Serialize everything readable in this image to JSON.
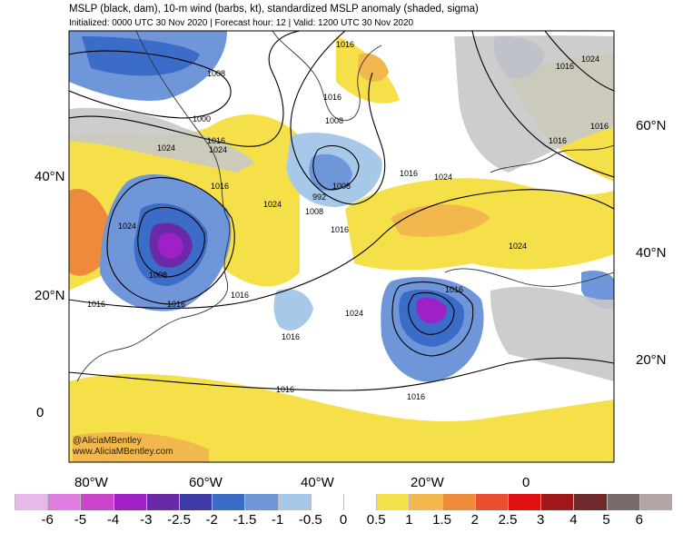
{
  "header": {
    "title": "MSLP (black, dam), 10-m wind (barbs, kt), standardized MSLP anomaly (shaded, sigma)",
    "subtitle": "Initialized: 0000 UTC 30 Nov 2020 | Forecast hour: 12 | Valid: 1200 UTC 30 Nov 2020"
  },
  "axes": {
    "left_lat": [
      "40°N",
      "20°N",
      "0"
    ],
    "right_lat": [
      "60°N",
      "40°N",
      "20°N"
    ],
    "bottom_lon": [
      "80°W",
      "60°W",
      "40°W",
      "20°W",
      "0"
    ]
  },
  "isobar_labels": [
    "1016",
    "1008",
    "1016",
    "1008",
    "1000",
    "1016",
    "1024",
    "1024",
    "1016",
    "1008",
    "992",
    "1008",
    "1016",
    "1024",
    "1016",
    "1024",
    "1016",
    "1024",
    "1016",
    "1024",
    "1016",
    "1024",
    "1008",
    "1016",
    "1016",
    "1024",
    "1016",
    "1016",
    "1016",
    "1016",
    "1016"
  ],
  "watermark": {
    "line1": "@AliciaMBentley",
    "line2": "www.AliciaMBentley.com"
  },
  "colorbar": {
    "labels": [
      "-6",
      "-5",
      "-4",
      "-3",
      "-2.5",
      "-2",
      "-1.5",
      "-1",
      "-0.5",
      "0",
      "0.5",
      "1",
      "1.5",
      "2",
      "2.5",
      "3",
      "4",
      "5",
      "6"
    ],
    "colors": [
      "#e8b8e8",
      "#e07de0",
      "#cc44cc",
      "#a020c8",
      "#6a2aa8",
      "#3d3aa8",
      "#3b6cc8",
      "#6e96d8",
      "#a8c8ea",
      "#ffffff",
      "#ffffff",
      "#f6e04a",
      "#f2b84e",
      "#ee8a3c",
      "#ea5030",
      "#e01010",
      "#a01818",
      "#6e2a2a",
      "#7a6a6a",
      "#b4a4a4"
    ]
  },
  "colors": {
    "ocean_white": "#ffffff",
    "land_grey": "#c8c8c8",
    "isobar": "#000000",
    "coast": "#333333"
  }
}
